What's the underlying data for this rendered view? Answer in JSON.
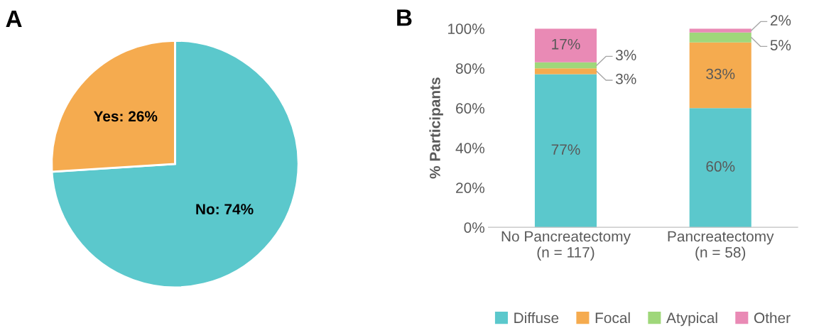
{
  "chart_data": [
    {
      "type": "pie",
      "title": "A",
      "categories": [
        "No",
        "Yes"
      ],
      "values": [
        74,
        26
      ],
      "value_labels": [
        "74%",
        "26%"
      ],
      "colors": [
        "#5bc8cc",
        "#f5ab4f"
      ]
    },
    {
      "type": "bar",
      "title": "B",
      "stacked": true,
      "ylabel": "% Participants",
      "categories": [
        "No Pancreatectomy\n(n = 117)",
        "Pancreatectomy\n(n = 58)"
      ],
      "ylim": [
        0,
        100
      ],
      "yticks": [
        {
          "value": 0,
          "label": "0%"
        },
        {
          "value": 20,
          "label": "20%"
        },
        {
          "value": 40,
          "label": "40%"
        },
        {
          "value": 60,
          "label": "60%"
        },
        {
          "value": 80,
          "label": "80%"
        },
        {
          "value": 100,
          "label": "100%"
        }
      ],
      "legend": "bottom",
      "grid": false,
      "series": [
        {
          "name": "Diffuse",
          "color": "#5bc8cc",
          "values": [
            77,
            60
          ],
          "value_labels": [
            "77%",
            "60%"
          ]
        },
        {
          "name": "Focal",
          "color": "#f5ab4f",
          "values": [
            3,
            33
          ],
          "value_labels": [
            "3%",
            "33%"
          ]
        },
        {
          "name": "Atypical",
          "color": "#9fd77a",
          "values": [
            3,
            5
          ],
          "value_labels": [
            "3%",
            "5%"
          ]
        },
        {
          "name": "Other",
          "color": "#e98ab5",
          "values": [
            17,
            2
          ],
          "value_labels": [
            "17%",
            "2%"
          ]
        }
      ]
    }
  ]
}
